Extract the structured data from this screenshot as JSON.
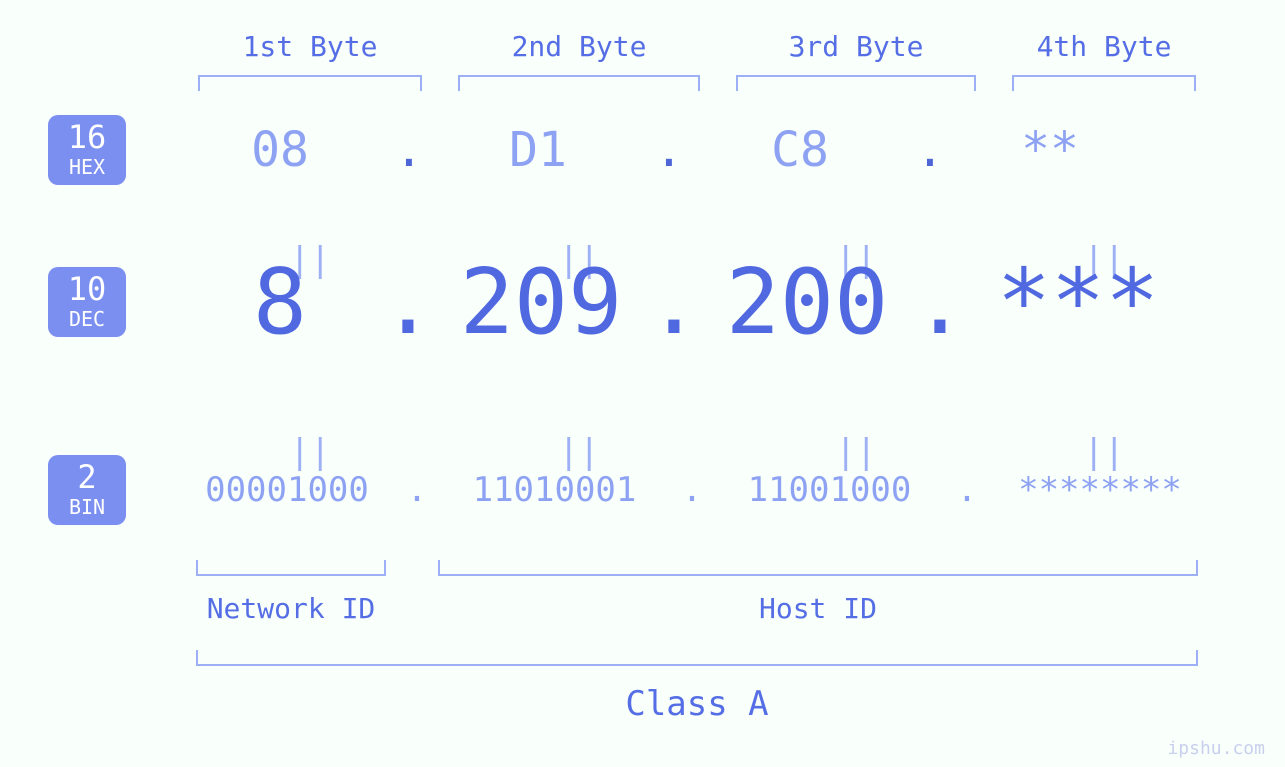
{
  "colors": {
    "background": "#f9fffa",
    "badge_bg": "#7b8ff0",
    "badge_fg": "#ffffff",
    "label_color": "#556ee6",
    "bracket_color": "#9db0f5",
    "hex_color": "#8ea2f3",
    "dec_color": "#5068e0",
    "bin_color": "#8ea2f3",
    "eq_color": "#9db0f5",
    "watermark_color": "#c8d0ee"
  },
  "fontsizes": {
    "byte_label": 28,
    "badge_num": 32,
    "badge_txt": 20,
    "hex": 48,
    "dec": 90,
    "bin": 34,
    "eq": 34,
    "bottom_label": 28,
    "class_label": 34,
    "watermark": 18
  },
  "byte_labels": [
    "1st Byte",
    "2nd Byte",
    "3rd Byte",
    "4th Byte"
  ],
  "rows": {
    "hex": {
      "badge_num": "16",
      "badge_txt": "HEX",
      "values": [
        "08",
        "D1",
        "C8",
        "**"
      ]
    },
    "dec": {
      "badge_num": "10",
      "badge_txt": "DEC",
      "values": [
        "8",
        "209",
        "200",
        "***"
      ]
    },
    "bin": {
      "badge_num": "2",
      "badge_txt": "BIN",
      "values": [
        "00001000",
        "11010001",
        "11001000",
        "********"
      ]
    }
  },
  "separators": {
    "dot": ".",
    "eq": "||"
  },
  "bottom": {
    "network_label": "Network ID",
    "host_label": "Host ID",
    "class_label": "Class A"
  },
  "watermark": "ipshu.com"
}
